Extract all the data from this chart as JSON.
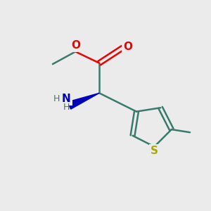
{
  "bg_color": "#ebebeb",
  "bond_color": "#3a7a6a",
  "o_color": "#ee0000",
  "n_color": "#0000bb",
  "s_color": "#aaaa00",
  "lw": 1.8,
  "figsize": [
    3.0,
    3.0
  ],
  "dpi": 100,
  "xlim": [
    0,
    10
  ],
  "ylim": [
    0,
    10
  ]
}
